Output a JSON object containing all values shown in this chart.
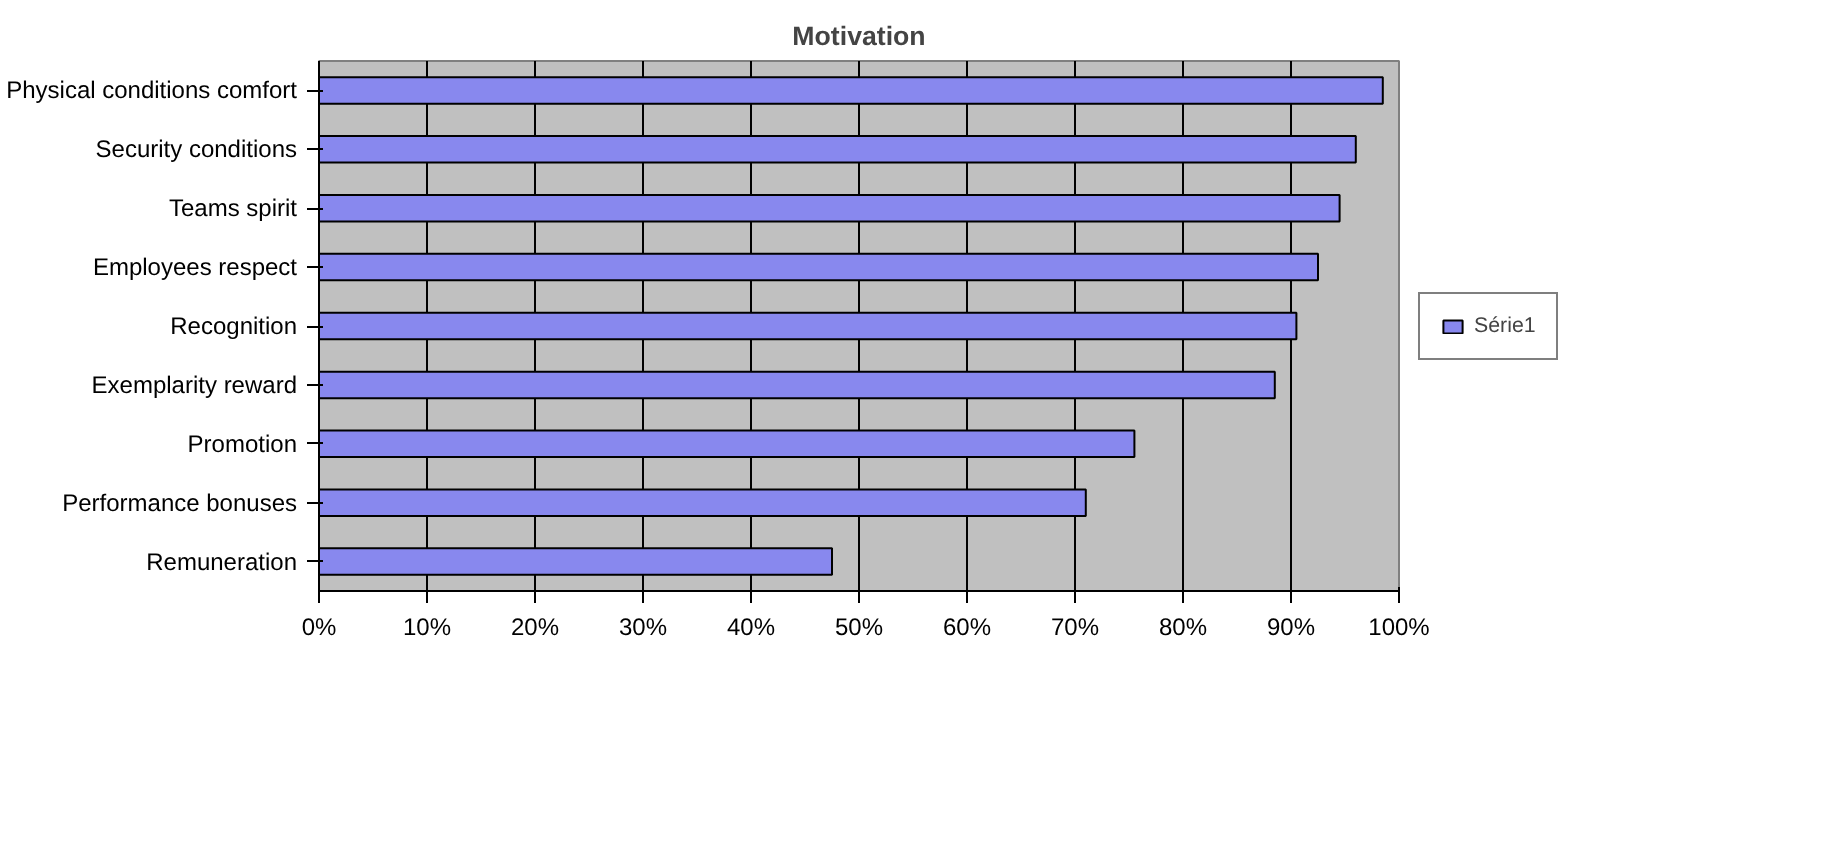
{
  "chart_data": {
    "type": "bar",
    "orientation": "horizontal",
    "title": "Motivation",
    "categories": [
      "Physical conditions comfort",
      "Security conditions",
      "Teams spirit",
      "Employees respect",
      "Recognition",
      "Exemplarity reward",
      "Promotion",
      "Performance bonuses",
      "Remuneration"
    ],
    "series": [
      {
        "name": "Série1",
        "color": "#8888ee",
        "values": [
          98.5,
          96,
          94.5,
          92.5,
          90.5,
          88.5,
          75.5,
          71,
          47.5
        ]
      }
    ],
    "xlim": [
      0,
      100
    ],
    "xticks": [
      {
        "value": 0,
        "label": "0%"
      },
      {
        "value": 10,
        "label": "10%"
      },
      {
        "value": 20,
        "label": "20%"
      },
      {
        "value": 30,
        "label": "30%"
      },
      {
        "value": 40,
        "label": "40%"
      },
      {
        "value": 50,
        "label": "50%"
      },
      {
        "value": 60,
        "label": "60%"
      },
      {
        "value": 70,
        "label": "70%"
      },
      {
        "value": 80,
        "label": "80%"
      },
      {
        "value": 90,
        "label": "90%"
      },
      {
        "value": 100,
        "label": "100%"
      }
    ],
    "grid": "x",
    "legend": "right"
  }
}
